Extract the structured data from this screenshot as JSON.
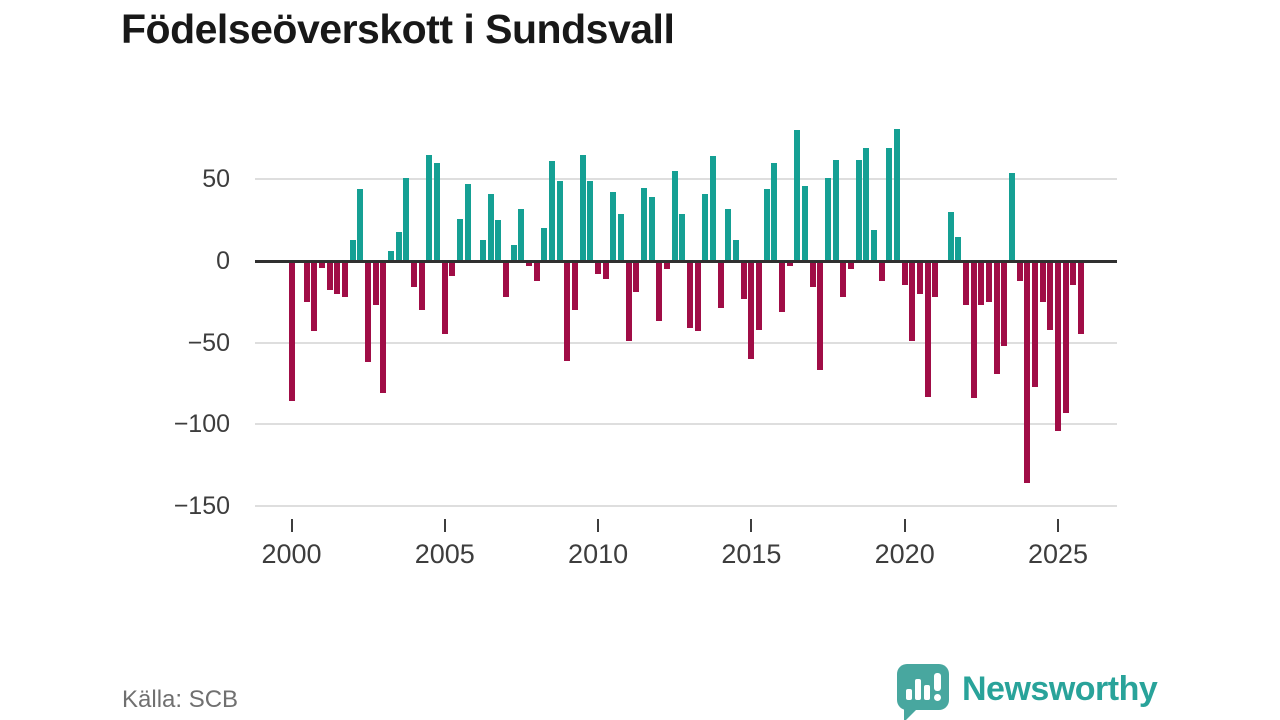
{
  "title": "Födelseöverskott i Sundsvall",
  "source": "Källa: SCB",
  "branding": {
    "name": "Newsworthy"
  },
  "colors": {
    "positive": "#15a094",
    "negative": "#a00d46",
    "grid": "#dedede",
    "zero_line": "#303030",
    "axis_text": "#3d3d3d",
    "title_text": "#181818",
    "source_text": "#707070",
    "logo": "#29a39a"
  },
  "chart_data": {
    "type": "bar",
    "title": "Födelseöverskott i Sundsvall",
    "frequency": "quarterly",
    "start": "2000-Q1",
    "end": "2025-Q4",
    "grid": true,
    "ylim": [
      -155,
      90
    ],
    "y_ticks": [
      {
        "value": 50,
        "label": "50"
      },
      {
        "value": 0,
        "label": "0"
      },
      {
        "value": -50,
        "label": "−50"
      },
      {
        "value": -100,
        "label": "−100"
      },
      {
        "value": -150,
        "label": "−150"
      }
    ],
    "x_ticks": [
      {
        "year": 2000,
        "label": "2000"
      },
      {
        "year": 2005,
        "label": "2005"
      },
      {
        "year": 2010,
        "label": "2010"
      },
      {
        "year": 2015,
        "label": "2015"
      },
      {
        "year": 2020,
        "label": "2020"
      },
      {
        "year": 2025,
        "label": "2025"
      }
    ],
    "categories": [
      "2000Q1",
      "2000Q2",
      "2000Q3",
      "2000Q4",
      "2001Q1",
      "2001Q2",
      "2001Q3",
      "2001Q4",
      "2002Q1",
      "2002Q2",
      "2002Q3",
      "2002Q4",
      "2003Q1",
      "2003Q2",
      "2003Q3",
      "2003Q4",
      "2004Q1",
      "2004Q2",
      "2004Q3",
      "2004Q4",
      "2005Q1",
      "2005Q2",
      "2005Q3",
      "2005Q4",
      "2006Q1",
      "2006Q2",
      "2006Q3",
      "2006Q4",
      "2007Q1",
      "2007Q2",
      "2007Q3",
      "2007Q4",
      "2008Q1",
      "2008Q2",
      "2008Q3",
      "2008Q4",
      "2009Q1",
      "2009Q2",
      "2009Q3",
      "2009Q4",
      "2010Q1",
      "2010Q2",
      "2010Q3",
      "2010Q4",
      "2011Q1",
      "2011Q2",
      "2011Q3",
      "2011Q4",
      "2012Q1",
      "2012Q2",
      "2012Q3",
      "2012Q4",
      "2013Q1",
      "2013Q2",
      "2013Q3",
      "2013Q4",
      "2014Q1",
      "2014Q2",
      "2014Q3",
      "2014Q4",
      "2015Q1",
      "2015Q2",
      "2015Q3",
      "2015Q4",
      "2016Q1",
      "2016Q2",
      "2016Q3",
      "2016Q4",
      "2017Q1",
      "2017Q2",
      "2017Q3",
      "2017Q4",
      "2018Q1",
      "2018Q2",
      "2018Q3",
      "2018Q4",
      "2019Q1",
      "2019Q2",
      "2019Q3",
      "2019Q4",
      "2020Q1",
      "2020Q2",
      "2020Q3",
      "2020Q4",
      "2021Q1",
      "2021Q2",
      "2021Q3",
      "2021Q4",
      "2022Q1",
      "2022Q2",
      "2022Q3",
      "2022Q4",
      "2023Q1",
      "2023Q2",
      "2023Q3",
      "2023Q4",
      "2024Q1",
      "2024Q2",
      "2024Q3",
      "2024Q4",
      "2025Q1",
      "2025Q2",
      "2025Q3",
      "2025Q4"
    ],
    "values": [
      -86,
      0,
      -25,
      -43,
      -4,
      -18,
      -20,
      -22,
      13,
      44,
      -62,
      -27,
      -81,
      6,
      18,
      51,
      -16,
      -30,
      65,
      60,
      -45,
      -9,
      26,
      47,
      0,
      13,
      41,
      25,
      -22,
      10,
      32,
      -3,
      -12,
      20,
      61,
      49,
      -61,
      -30,
      65,
      49,
      -8,
      -11,
      42,
      29,
      -49,
      -19,
      45,
      39,
      -37,
      -5,
      55,
      29,
      -41,
      -43,
      41,
      64,
      -29,
      32,
      13,
      -23,
      -60,
      -42,
      44,
      60,
      -31,
      -3,
      80,
      46,
      -16,
      -67,
      51,
      62,
      -22,
      -5,
      62,
      69,
      19,
      -12,
      69,
      81,
      -15,
      -49,
      -20,
      -83,
      -22,
      0,
      30,
      15,
      -27,
      -84,
      -27,
      -25,
      -69,
      -52,
      54,
      -12,
      -136,
      -77,
      -25,
      -42,
      -104,
      -93,
      -15,
      -45
    ]
  }
}
